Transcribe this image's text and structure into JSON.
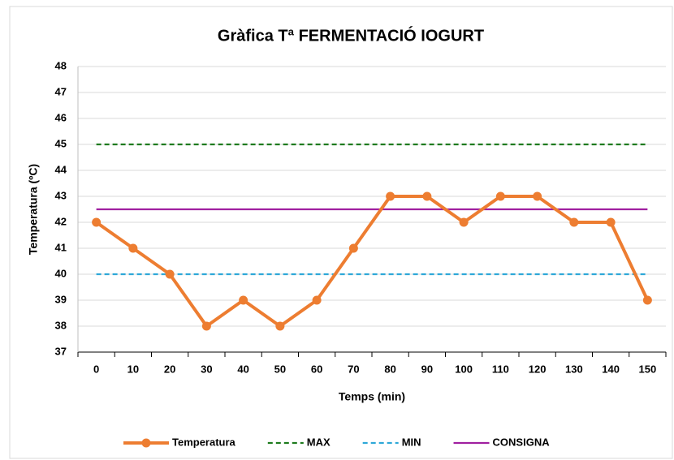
{
  "chart_data": {
    "type": "line",
    "title": "Gràfica Tª FERMENTACIÓ IOGURT",
    "x_label": "Temps (min)",
    "y_label": "Temperatura (ºC)",
    "categories": [
      "0",
      "10",
      "20",
      "30",
      "40",
      "50",
      "60",
      "70",
      "80",
      "90",
      "100",
      "110",
      "120",
      "130",
      "140",
      "150"
    ],
    "series": [
      {
        "name": "Temperatura",
        "color": "#ed7d31",
        "style": "solid",
        "marker": true,
        "values": [
          42,
          41,
          40,
          38,
          39,
          38,
          39,
          41,
          43,
          43,
          42,
          43,
          43,
          42,
          42,
          39
        ]
      },
      {
        "name": "MAX",
        "color": "#1e7b1e",
        "style": "dashed",
        "marker": false,
        "values": [
          45,
          45,
          45,
          45,
          45,
          45,
          45,
          45,
          45,
          45,
          45,
          45,
          45,
          45,
          45,
          45
        ]
      },
      {
        "name": "MIN",
        "color": "#2ea8d8",
        "style": "dashed",
        "marker": false,
        "values": [
          40,
          40,
          40,
          40,
          40,
          40,
          40,
          40,
          40,
          40,
          40,
          40,
          40,
          40,
          40,
          40
        ]
      },
      {
        "name": "CONSIGNA",
        "color": "#a020a0",
        "style": "solid",
        "marker": false,
        "values": [
          42.5,
          42.5,
          42.5,
          42.5,
          42.5,
          42.5,
          42.5,
          42.5,
          42.5,
          42.5,
          42.5,
          42.5,
          42.5,
          42.5,
          42.5,
          42.5
        ]
      }
    ],
    "ylim": [
      37,
      48
    ],
    "yticks": [
      37,
      38,
      39,
      40,
      41,
      42,
      43,
      44,
      45,
      46,
      47,
      48
    ],
    "grid": true,
    "legend": "bottom"
  }
}
